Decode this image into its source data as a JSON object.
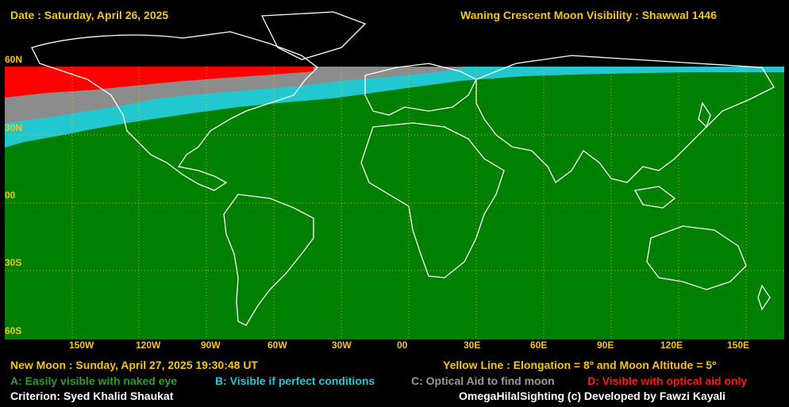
{
  "header": {
    "date": "Date : Saturday, April 26, 2025",
    "title": "Waning Crescent Moon Visibility : Shawwal 1446"
  },
  "map": {
    "lat_labels": [
      "60N",
      "30N",
      "00",
      "30S",
      "60S"
    ],
    "lon_labels": [
      "150W",
      "120W",
      "90W",
      "60W",
      "30W",
      "00",
      "30E",
      "60E",
      "90E",
      "120E",
      "150E"
    ],
    "colors": {
      "A": "#008000",
      "B": "#22c8d0",
      "C": "#8c8c8c",
      "D": "#ff0000",
      "land_outline": "#ffffff",
      "grid": "#d8d820"
    }
  },
  "footer": {
    "new_moon": "New Moon : Sunday, April 27, 2025  19:30:48  UT",
    "yellow_line": "Yellow Line : Elongation = 8º  and Moon Altitude = 5º",
    "legend": {
      "a": "A: Easily visible with naked eye",
      "b": "B: Visible if perfect conditions",
      "c": "C: Optical Aid to find moon",
      "d": "D: Visible with optical aid only"
    },
    "criterion": "Criterion: Syed Khalid Shaukat",
    "credit": "OmegaHilalSighting  (c)  Developed by Fawzi Kayali"
  },
  "legend_colors": {
    "a": "#2e9e2e",
    "b": "#2ec4d4",
    "c": "#9a9a9a",
    "d": "#ff1a1a"
  }
}
